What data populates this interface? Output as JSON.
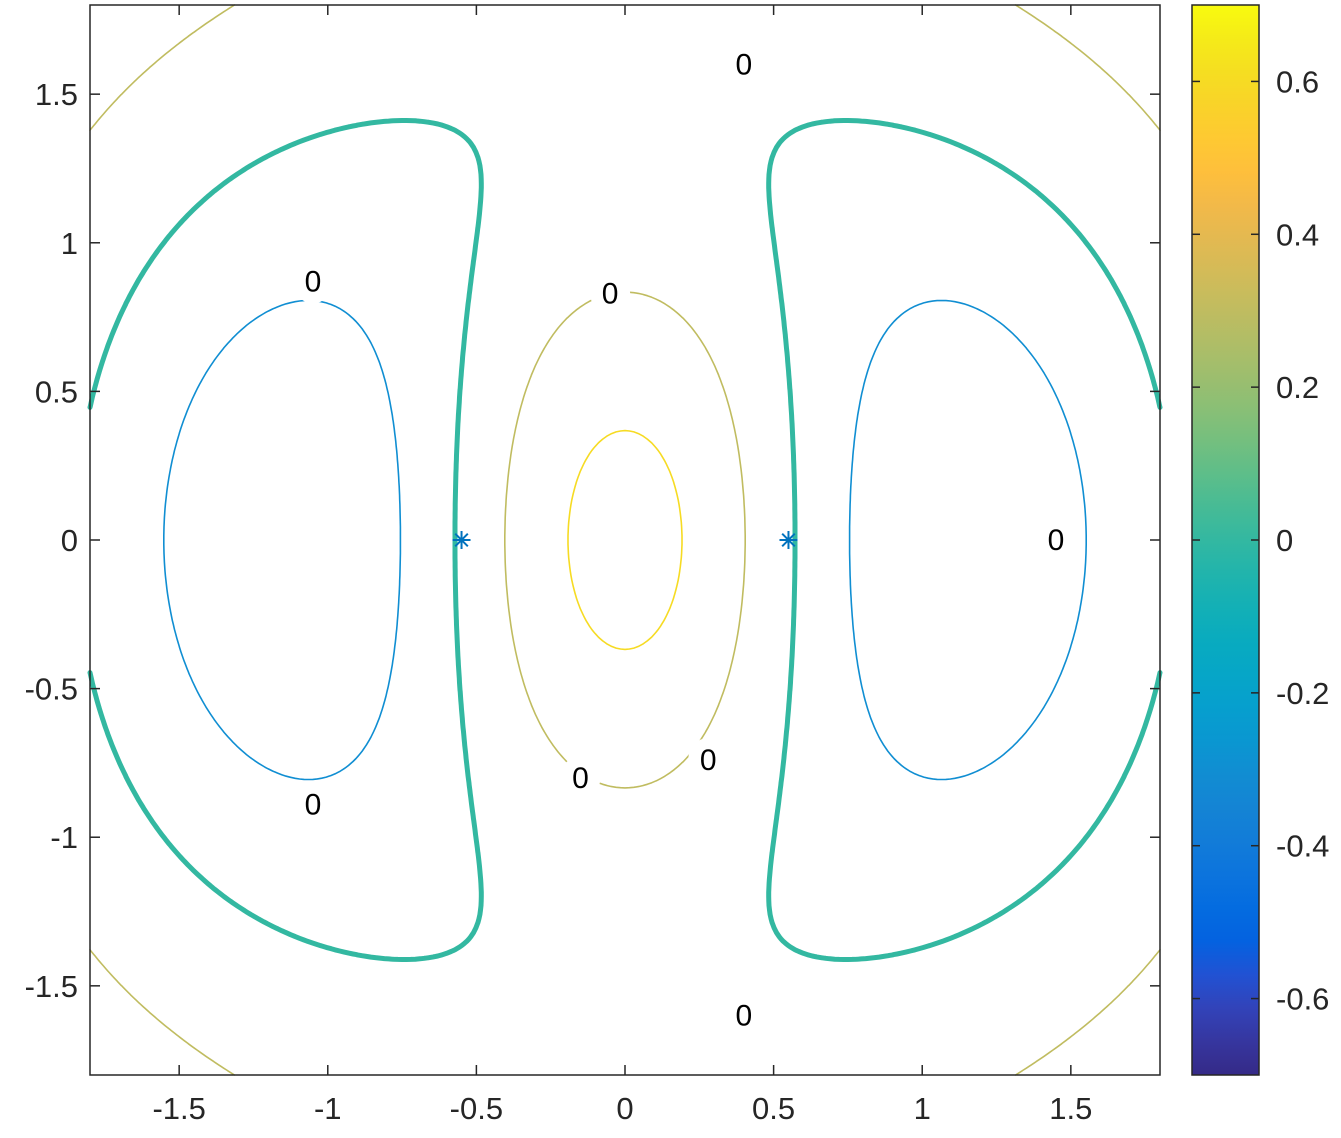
{
  "chart_data": {
    "type": "contour",
    "title": "",
    "xlabel": "",
    "ylabel": "",
    "xlim": [
      -1.8,
      1.8
    ],
    "ylim": [
      -1.8,
      1.8
    ],
    "xticks": [
      -1.5,
      -1,
      -0.5,
      0,
      0.5,
      1,
      1.5
    ],
    "xtick_labels": [
      "-1.5",
      "-1",
      "-0.5",
      "0",
      "0.5",
      "1",
      "1.5"
    ],
    "yticks": [
      -1.5,
      -1,
      -0.5,
      0,
      0.5,
      1,
      1.5
    ],
    "ytick_labels": [
      "-1.5",
      "-1",
      "-0.5",
      "0",
      "0.5",
      "1",
      "1.5"
    ],
    "grid": false,
    "levels": [
      -0.6,
      -0.3,
      0,
      0.3,
      0.6
    ],
    "highlighted_level": 0,
    "contour_labels": [
      {
        "text": "0",
        "x": 0.4,
        "y": 1.6
      },
      {
        "text": "0",
        "x": -1.05,
        "y": 0.87
      },
      {
        "text": "0",
        "x": -0.05,
        "y": 0.83
      },
      {
        "text": "0",
        "x": 1.45,
        "y": 0
      },
      {
        "text": "0",
        "x": -0.15,
        "y": -0.8
      },
      {
        "text": "0",
        "x": 0.28,
        "y": -0.74
      },
      {
        "text": "0",
        "x": -1.05,
        "y": -0.89
      },
      {
        "text": "0",
        "x": 0.4,
        "y": -1.6
      }
    ],
    "markers": [
      {
        "symbol": "*",
        "x": -0.55,
        "y": 0
      },
      {
        "symbol": "*",
        "x": 0.55,
        "y": 0
      }
    ],
    "colorbar": {
      "min": -0.7,
      "max": 0.7,
      "ticks": [
        -0.6,
        -0.4,
        -0.2,
        0,
        0.2,
        0.4,
        0.6
      ],
      "tick_labels": [
        "-0.6",
        "-0.4",
        "-0.2",
        "0",
        "0.2",
        "0.4",
        "0.6"
      ],
      "colormap": "parula"
    },
    "colors": {
      "marker": "#0072BD",
      "axes": "#262626"
    }
  }
}
